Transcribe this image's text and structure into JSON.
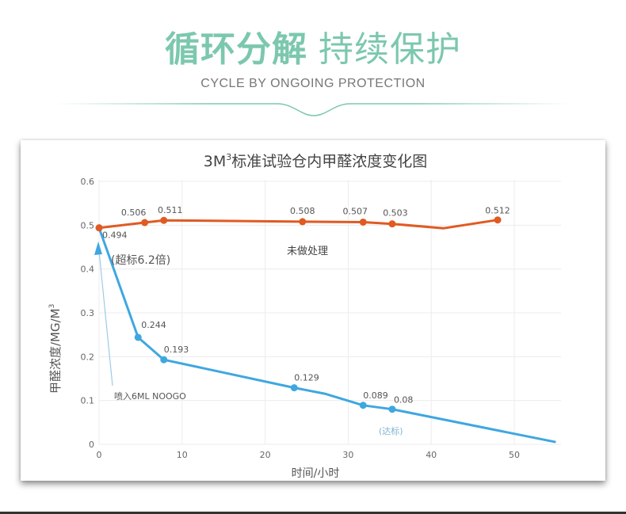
{
  "header": {
    "title_bold": "循环分解",
    "title_light": "持续保护",
    "subtitle": "CYCLE BY ONGOING PROTECTION",
    "accent_color": "#7cc8ad"
  },
  "chart_data": {
    "type": "line",
    "title_prefix": "3M",
    "title_sup": "3",
    "title_rest": "标准试验仓内甲醛浓度变化图",
    "xlabel": "时间/小时",
    "ylabel": "甲醛浓度/MG/M",
    "ylabel_sup": "3",
    "xlim": [
      0,
      55
    ],
    "ylim": [
      0,
      0.6
    ],
    "x_ticks": [
      0,
      10,
      20,
      30,
      40,
      50
    ],
    "x_tick_labels": [
      "0",
      "10",
      "20",
      "30",
      "40",
      "50"
    ],
    "y_ticks": [
      0,
      0.1,
      0.2,
      0.3,
      0.4,
      0.5,
      0.6
    ],
    "y_tick_labels": [
      "0",
      "0.1",
      "0.2",
      "0.3",
      "0.4",
      "0.5",
      "0.6"
    ],
    "grid": true,
    "series": [
      {
        "name": "未做处理",
        "color": "#e05a22",
        "points": [
          {
            "x": 0,
            "y": 0.494,
            "label": "0.494",
            "marker": true
          },
          {
            "x": 5.5,
            "y": 0.506,
            "label": "0.506",
            "marker": true
          },
          {
            "x": 7.8,
            "y": 0.511,
            "label": "0.511",
            "marker": true
          },
          {
            "x": 24.5,
            "y": 0.508,
            "label": "0.508",
            "marker": true
          },
          {
            "x": 31.8,
            "y": 0.507,
            "label": "0.507",
            "marker": true
          },
          {
            "x": 35.3,
            "y": 0.503,
            "label": "0.503",
            "marker": true
          },
          {
            "x": 41.5,
            "y": 0.493,
            "label": "",
            "marker": false
          },
          {
            "x": 48,
            "y": 0.512,
            "label": "0.512",
            "marker": true
          }
        ]
      },
      {
        "name": "喷入6ML NOOGO",
        "color": "#3fa7e0",
        "points": [
          {
            "x": 0,
            "y": 0.494,
            "label": "",
            "marker": false
          },
          {
            "x": 4.7,
            "y": 0.244,
            "label": "0.244",
            "marker": true
          },
          {
            "x": 7.8,
            "y": 0.193,
            "label": "0.193",
            "marker": true
          },
          {
            "x": 23.5,
            "y": 0.129,
            "label": "0.129",
            "marker": true
          },
          {
            "x": 27.3,
            "y": 0.115,
            "label": "",
            "marker": false
          },
          {
            "x": 31.8,
            "y": 0.089,
            "label": "0.089",
            "marker": true
          },
          {
            "x": 35.3,
            "y": 0.08,
            "label": "0.08",
            "marker": true
          },
          {
            "x": 55,
            "y": 0.005,
            "label": "",
            "marker": false
          }
        ]
      }
    ],
    "annotations": {
      "exceed": "(超标6.2倍)",
      "untreated": "未做处理",
      "spray": "喷入6ML NOOGO",
      "reached": "(达标)"
    }
  }
}
